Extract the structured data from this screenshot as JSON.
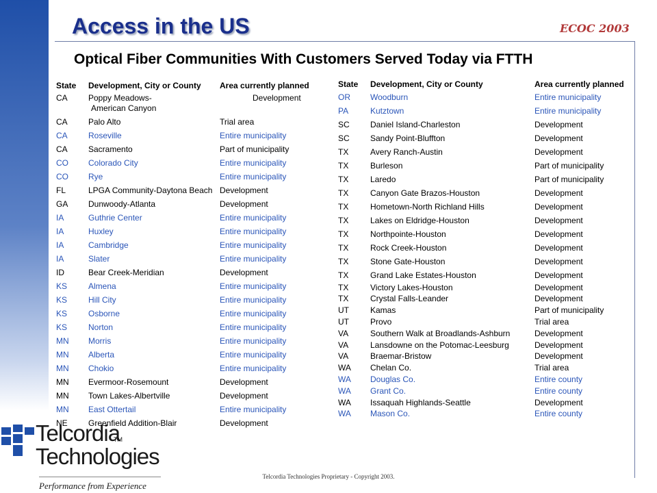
{
  "header": {
    "title": "Access in the US",
    "conference": "ECOC 2003",
    "subtitle": "Optical Fiber Communities With Customers Served Today via FTTH"
  },
  "colors": {
    "highlight": "#2a55b8",
    "title": "#1a2f8c",
    "conference": "#b23a3a"
  },
  "table_headers": {
    "state": "State",
    "development": "Development, City or County",
    "area": "Area currently planned"
  },
  "left_rows": [
    {
      "state": "CA",
      "name": "Poppy Meadows-",
      "name2": "American Canyon",
      "area": "Development",
      "hl": false
    },
    {
      "state": "CA",
      "name": "Palo Alto",
      "area": "Trial area",
      "hl": false
    },
    {
      "state": "CA",
      "name": "Roseville",
      "area": "Entire municipality",
      "hl": true
    },
    {
      "state": "CA",
      "name": "Sacramento",
      "area": "Part of municipality",
      "hl": false
    },
    {
      "state": "CO",
      "name": "Colorado City",
      "area": "Entire municipality",
      "hl": true
    },
    {
      "state": "CO",
      "name": "Rye",
      "area": "Entire municipality",
      "hl": true
    },
    {
      "state": "FL",
      "name": "LPGA Community-Daytona Beach",
      "area": "Development",
      "hl": false
    },
    {
      "state": "GA",
      "name": "Dunwoody-Atlanta",
      "area": "Development",
      "hl": false
    },
    {
      "state": "IA",
      "name": "Guthrie Center",
      "area": "Entire municipality",
      "hl": true
    },
    {
      "state": "IA",
      "name": "Huxley",
      "area": "Entire municipality",
      "hl": true
    },
    {
      "state": "IA",
      "name": "Cambridge",
      "area": "Entire municipality",
      "hl": true
    },
    {
      "state": "IA",
      "name": "Slater",
      "area": "Entire municipality",
      "hl": true
    },
    {
      "state": "ID",
      "name": "Bear Creek-Meridian",
      "area": "Development",
      "hl": false
    },
    {
      "state": "KS",
      "name": "Almena",
      "area": "Entire municipality",
      "hl": true
    },
    {
      "state": "KS",
      "name": "Hill City",
      "area": "Entire municipality",
      "hl": true
    },
    {
      "state": "KS",
      "name": "Osborne",
      "area": "Entire municipality",
      "hl": true
    },
    {
      "state": "KS",
      "name": "Norton",
      "area": "Entire municipality",
      "hl": true
    },
    {
      "state": "MN",
      "name": "Morris",
      "area": "Entire municipality",
      "hl": true
    },
    {
      "state": "MN",
      "name": "Alberta",
      "area": "Entire municipality",
      "hl": true
    },
    {
      "state": "MN",
      "name": "Chokio",
      "area": "Entire municipality",
      "hl": true
    },
    {
      "state": "MN",
      "name": "Evermoor-Rosemount",
      "area": "Development",
      "hl": false
    },
    {
      "state": "MN",
      "name": "Town Lakes-Albertville",
      "area": "Development",
      "hl": false
    },
    {
      "state": "MN",
      "name": "East Ottertail",
      "area": "Entire municipality",
      "hl": true
    },
    {
      "state": "NE",
      "name": "Greenfield Addition-Blair",
      "area": "Development",
      "hl": false
    }
  ],
  "right_rows": [
    {
      "state": "OR",
      "name": "Woodburn",
      "area": "Entire municipality",
      "hl": true
    },
    {
      "state": "PA",
      "name": "Kutztown",
      "area": "Entire municipality",
      "hl": true
    },
    {
      "state": "SC",
      "name": "Daniel Island-Charleston",
      "area": "Development",
      "hl": false
    },
    {
      "state": "SC",
      "name": "Sandy Point-Bluffton",
      "area": "Development",
      "hl": false
    },
    {
      "state": "TX",
      "name": "Avery Ranch-Austin",
      "area": "Development",
      "hl": false
    },
    {
      "state": "TX",
      "name": "Burleson",
      "area": "Part of municipality",
      "hl": false
    },
    {
      "state": "TX",
      "name": "Laredo",
      "area": "Part of municipality",
      "hl": false
    },
    {
      "state": "TX",
      "name": "Canyon Gate Brazos-Houston",
      "area": "Development",
      "hl": false
    },
    {
      "state": "TX",
      "name": "Hometown-North Richland Hills",
      "area": "Development",
      "hl": false
    },
    {
      "state": "TX",
      "name": "Lakes on Eldridge-Houston",
      "area": "Development",
      "hl": false
    },
    {
      "state": "TX",
      "name": "Northpointe-Houston",
      "area": "Development",
      "hl": false
    },
    {
      "state": "TX",
      "name": "Rock Creek-Houston",
      "area": "Development",
      "hl": false
    },
    {
      "state": "TX",
      "name": "Stone Gate-Houston",
      "area": "Development",
      "hl": false
    },
    {
      "state": "TX",
      "name": "Grand Lake Estates-Houston",
      "area": "Development",
      "hl": false
    },
    {
      "state": "TX",
      "name": "Victory Lakes-Houston",
      "area": "Development",
      "hl": false
    },
    {
      "state": "TX",
      "name": "Crystal Falls-Leander",
      "area": "Development",
      "hl": false
    },
    {
      "state": "UT",
      "name": "Kamas",
      "area": "Part of municipality",
      "hl": false
    },
    {
      "state": "UT",
      "name": "Provo",
      "area": "Trial area",
      "hl": false
    },
    {
      "state": "VA",
      "name": "Southern Walk at Broadlands-Ashburn",
      "area": "Development",
      "hl": false
    },
    {
      "state": "VA",
      "name": "Lansdowne on the Potomac-Leesburg",
      "area": "Development",
      "hl": false
    },
    {
      "state": "VA",
      "name": "Braemar-Bristow",
      "area": "Development",
      "hl": false
    },
    {
      "state": "WA",
      "name": "Chelan Co.",
      "area": "Trial area",
      "hl": false
    },
    {
      "state": "WA",
      "name": "Douglas Co.",
      "area": "Entire county",
      "hl": true
    },
    {
      "state": "WA",
      "name": "Grant Co.",
      "area": "Entire county",
      "hl": true
    },
    {
      "state": "WA",
      "name": "Issaquah Highlands-Seattle",
      "area": "Development",
      "hl": false
    },
    {
      "state": "WA",
      "name": "Mason Co.",
      "area": "Entire county",
      "hl": true
    }
  ],
  "footer": {
    "text": "Telcordia Technologies Proprietary - Copyright 2003."
  },
  "logo": {
    "line1": "Telcordia",
    "line2": "Technologies",
    "trademark": "TM",
    "tagline": "Performance from Experience",
    "icon": "telcordia-logo-icon"
  }
}
